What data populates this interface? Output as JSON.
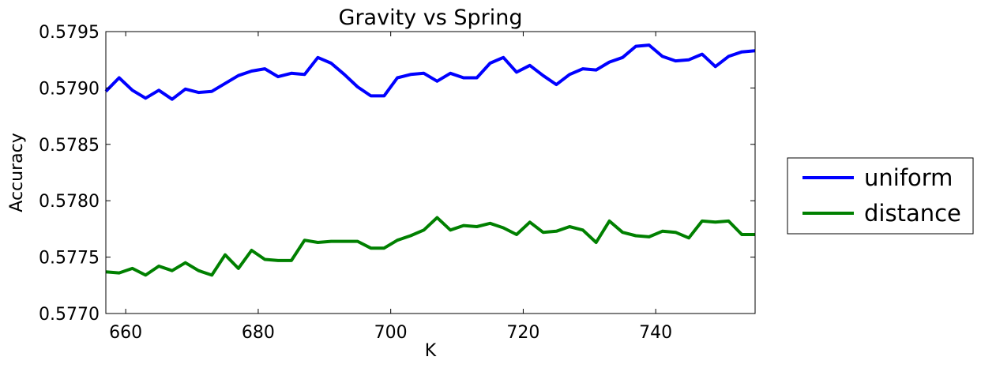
{
  "chart_data": {
    "type": "line",
    "title": "Gravity vs Spring",
    "xlabel": "K",
    "ylabel": "Accuracy",
    "xlim": [
      657,
      755
    ],
    "ylim": [
      0.577,
      0.5795
    ],
    "xticks": [
      660,
      680,
      700,
      720,
      740
    ],
    "xtick_labels": [
      "660",
      "680",
      "700",
      "720",
      "740"
    ],
    "yticks": [
      0.577,
      0.5775,
      0.578,
      0.5785,
      0.579,
      0.5795
    ],
    "ytick_labels": [
      "0.5770",
      "0.5775",
      "0.5780",
      "0.5785",
      "0.5790",
      "0.5795"
    ],
    "grid": false,
    "legend_position": "right",
    "x": [
      657,
      659,
      661,
      663,
      665,
      667,
      669,
      671,
      673,
      675,
      677,
      679,
      681,
      683,
      685,
      687,
      689,
      691,
      693,
      695,
      697,
      699,
      701,
      703,
      705,
      707,
      709,
      711,
      713,
      715,
      717,
      719,
      721,
      723,
      725,
      727,
      729,
      731,
      733,
      735,
      737,
      739,
      741,
      743,
      745,
      747,
      749,
      751,
      753,
      755
    ],
    "series": [
      {
        "name": "uniform",
        "color": "#0000ff",
        "values": [
          0.57897,
          0.57909,
          0.57898,
          0.57891,
          0.57898,
          0.5789,
          0.57899,
          0.57896,
          0.57897,
          0.57904,
          0.57911,
          0.57915,
          0.57917,
          0.5791,
          0.57913,
          0.57912,
          0.57927,
          0.57922,
          0.57912,
          0.57901,
          0.57893,
          0.57893,
          0.57909,
          0.57912,
          0.57913,
          0.57906,
          0.57913,
          0.57909,
          0.57909,
          0.57922,
          0.57927,
          0.57914,
          0.5792,
          0.57911,
          0.57903,
          0.57912,
          0.57917,
          0.57916,
          0.57923,
          0.57927,
          0.57937,
          0.57938,
          0.57928,
          0.57924,
          0.57925,
          0.5793,
          0.57919,
          0.57928,
          0.57932,
          0.57933
        ]
      },
      {
        "name": "distance",
        "color": "#008000",
        "values": [
          0.57737,
          0.57736,
          0.5774,
          0.57734,
          0.57742,
          0.57738,
          0.57745,
          0.57738,
          0.57734,
          0.57752,
          0.5774,
          0.57756,
          0.57748,
          0.57747,
          0.57747,
          0.57765,
          0.57763,
          0.57764,
          0.57764,
          0.57764,
          0.57758,
          0.57758,
          0.57765,
          0.57769,
          0.57774,
          0.57785,
          0.57774,
          0.57778,
          0.57777,
          0.5778,
          0.57776,
          0.5777,
          0.57781,
          0.57772,
          0.57773,
          0.57777,
          0.57774,
          0.57763,
          0.57782,
          0.57772,
          0.57769,
          0.57768,
          0.57773,
          0.57772,
          0.57767,
          0.57782,
          0.57781,
          0.57782,
          0.5777,
          0.5777
        ]
      }
    ]
  }
}
